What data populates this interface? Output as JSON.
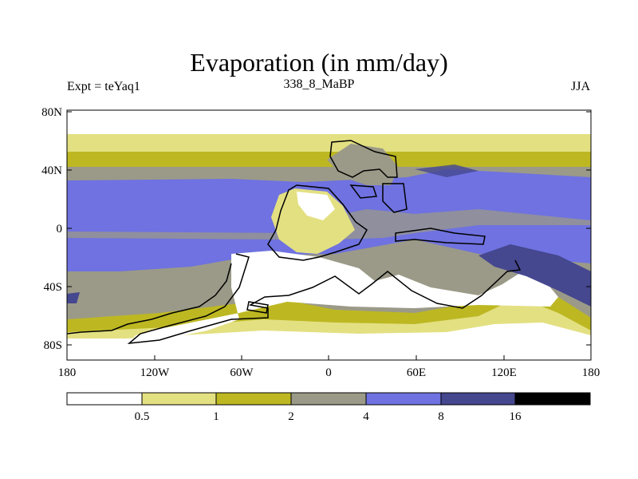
{
  "title": "Evaporation (in mm/day)",
  "experiment": "Expt = teYaq1",
  "period": "338_8_MaBP",
  "season": "JJA",
  "lat_labels": [
    "80N",
    "40N",
    "0",
    "40S",
    "80S"
  ],
  "lon_labels": [
    "180",
    "120W",
    "60W",
    "0",
    "60E",
    "120E",
    "180"
  ],
  "colorbar": {
    "levels": [
      "0.5",
      "1",
      "2",
      "4",
      "8",
      "16"
    ],
    "colors": [
      "#ffffff",
      "#e3e082",
      "#bdb822",
      "#9b9a88",
      "#6f72e0",
      "#45478f",
      "#000000"
    ]
  },
  "chart_data": {
    "type": "heatmap",
    "variable": "Evaporation",
    "units": "mm/day",
    "lat_range": [
      -90,
      90
    ],
    "lon_range": [
      -180,
      180
    ],
    "contour_levels": [
      0.5,
      1,
      2,
      4,
      8,
      16
    ]
  }
}
